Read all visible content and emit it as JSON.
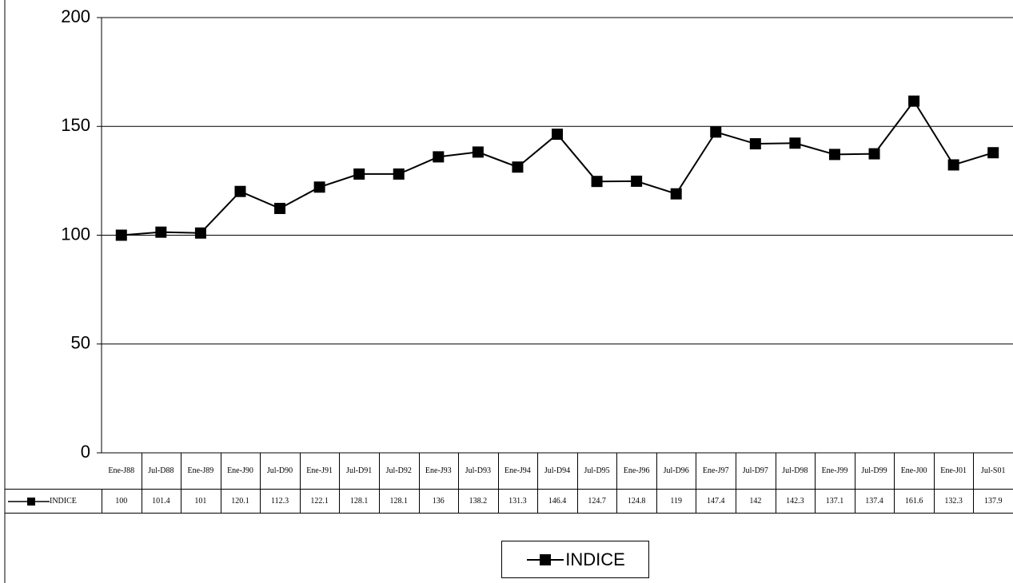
{
  "chart_data": {
    "type": "line",
    "categories": [
      "Ene-J88",
      "Jul-D88",
      "Ene-J89",
      "Ene-J90",
      "Jul-D90",
      "Ene-J91",
      "Jul-D91",
      "Jul-D92",
      "Ene-J93",
      "Jul-D93",
      "Ene-J94",
      "Jul-D94",
      "Jul-D95",
      "Ene-J96",
      "Jul-D96",
      "Ene-J97",
      "Jul-D97",
      "Jul-D98",
      "Ene-J99",
      "Jul-D99",
      "Ene-J00",
      "Ene-J01",
      "Jul-S01"
    ],
    "series": [
      {
        "name": "INDICE",
        "color": "#000000",
        "values": [
          100,
          101.4,
          101,
          120.1,
          112.3,
          122.1,
          128.1,
          128.1,
          136,
          138.2,
          131.3,
          146.4,
          124.7,
          124.8,
          119,
          147.4,
          142,
          142.3,
          137.1,
          137.4,
          161.6,
          132.3,
          137.9
        ]
      }
    ],
    "ylim": [
      0,
      200
    ],
    "yticks": [
      0,
      50,
      100,
      150,
      200
    ],
    "grid": true,
    "legend": "bottom"
  }
}
